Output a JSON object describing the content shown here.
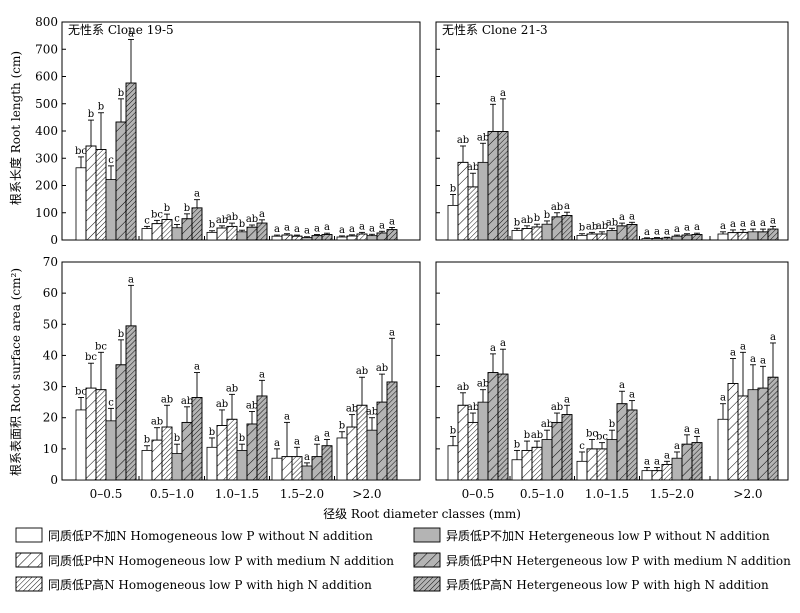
{
  "chart_data": {
    "type": "bar",
    "xlabel": "径级 Root diameter classes (mm)",
    "categories": [
      "0–0.5",
      "0.5–1.0",
      "1.0–1.5",
      "1.5–2.0",
      ">2.0"
    ],
    "legend": [
      {
        "label": "同质低P不加N  Homogeneous low P without N addition",
        "fill": "#ffffff",
        "hatch": "none"
      },
      {
        "label": "同质低P中N  Homogeneous low P with medium N addition",
        "fill": "#ffffff",
        "hatch": "sparse"
      },
      {
        "label": "同质低P高N  Homogeneous low P  with high N addition",
        "fill": "#ffffff",
        "hatch": "dense"
      },
      {
        "label": "异质低P不加N  Hetergeneous low P without N addition",
        "fill": "#b4b4b4",
        "hatch": "none"
      },
      {
        "label": "异质低P中N  Hetergeneous low P with medium N addition",
        "fill": "#b4b4b4",
        "hatch": "sparse"
      },
      {
        "label": "异质低P高N  Hetergeneous low P with high N addition",
        "fill": "#b4b4b4",
        "hatch": "dense"
      }
    ],
    "panels": [
      {
        "id": "length-19-5",
        "label": "无性系 Clone 19-5",
        "ylabel": "根系长度 Root length (cm)",
        "ylim": [
          0,
          800
        ],
        "yticks": [
          0,
          100,
          200,
          300,
          400,
          500,
          600,
          700,
          800
        ],
        "values": [
          [
            265,
            345,
            332,
            222,
            433,
            576
          ],
          [
            42,
            60,
            75,
            45,
            78,
            118
          ],
          [
            28,
            44,
            50,
            30,
            47,
            62
          ],
          [
            14,
            18,
            14,
            9,
            16,
            20
          ],
          [
            11,
            15,
            22,
            16,
            26,
            38
          ]
        ],
        "errors": [
          [
            40,
            95,
            135,
            50,
            85,
            160
          ],
          [
            8,
            12,
            20,
            12,
            18,
            30
          ],
          [
            6,
            8,
            12,
            6,
            8,
            12
          ],
          [
            4,
            5,
            4,
            3,
            4,
            5
          ],
          [
            4,
            4,
            6,
            5,
            6,
            8
          ]
        ],
        "sig": [
          [
            "bc",
            "b",
            "b",
            "c",
            "b",
            "a"
          ],
          [
            "c",
            "bc",
            "b",
            "c",
            "b",
            "a"
          ],
          [
            "b",
            "ab",
            "ab",
            "b",
            "ab",
            "a"
          ],
          [
            "a",
            "a",
            "a",
            "a",
            "a",
            "a"
          ],
          [
            "a",
            "a",
            "a",
            "a",
            "a",
            "a"
          ]
        ]
      },
      {
        "id": "length-21-3",
        "label": "无性系 Clone 21-3",
        "ylim": [
          0,
          800
        ],
        "values": [
          [
            127,
            285,
            195,
            285,
            398,
            398
          ],
          [
            35,
            42,
            48,
            58,
            85,
            90
          ],
          [
            17,
            22,
            22,
            35,
            52,
            57
          ],
          [
            5,
            6,
            7,
            14,
            18,
            20
          ],
          [
            22,
            27,
            28,
            30,
            30,
            40
          ]
        ],
        "errors": [
          [
            40,
            60,
            50,
            70,
            100,
            120
          ],
          [
            8,
            10,
            10,
            12,
            15,
            12
          ],
          [
            6,
            6,
            8,
            8,
            10,
            8
          ],
          [
            3,
            3,
            3,
            4,
            5,
            5
          ],
          [
            8,
            10,
            10,
            10,
            10,
            10
          ]
        ],
        "sig": [
          [
            "b",
            "ab",
            "ab",
            "ab",
            "a",
            "a"
          ],
          [
            "b",
            "ab",
            "b",
            "b",
            "ab",
            "a"
          ],
          [
            "b",
            "ab",
            "ab",
            "ab",
            "a",
            "a"
          ],
          [
            "a",
            "a",
            "a",
            "a",
            "a",
            "a"
          ],
          [
            "a",
            "a",
            "a",
            "a",
            "a",
            "a"
          ]
        ]
      },
      {
        "id": "area-19-5",
        "ylabel": "根系表面积 Root surface area (cm²)",
        "ylim": [
          0,
          70
        ],
        "yticks": [
          0,
          10,
          20,
          30,
          40,
          50,
          60,
          70
        ],
        "values": [
          [
            22.5,
            29.5,
            29,
            19,
            37,
            49.5
          ],
          [
            9.5,
            12.8,
            17,
            8.5,
            18.5,
            26.5
          ],
          [
            10.5,
            17.5,
            19.5,
            9.5,
            18,
            27
          ],
          [
            7,
            7.5,
            7.5,
            4.5,
            7.5,
            11
          ],
          [
            13.5,
            17,
            24,
            16,
            25,
            31.5
          ]
        ],
        "errors": [
          [
            4,
            8,
            12,
            4,
            8,
            13
          ],
          [
            1.5,
            4,
            7,
            3,
            5,
            8
          ],
          [
            3,
            5,
            8,
            2,
            4,
            5
          ],
          [
            3,
            11,
            3,
            1,
            4,
            2
          ],
          [
            2,
            4,
            9,
            4,
            9,
            14
          ]
        ],
        "sig": [
          [
            "bc",
            "bc",
            "bc",
            "c",
            "b",
            "a"
          ],
          [
            "b",
            "ab",
            "ab",
            "b",
            "ab",
            "a"
          ],
          [
            "b",
            "ab",
            "ab",
            "b",
            "ab",
            "a"
          ],
          [
            "a",
            "a",
            "a",
            "a",
            "a",
            "a"
          ],
          [
            "b",
            "ab",
            "ab",
            "ab",
            "ab",
            "a"
          ]
        ]
      },
      {
        "id": "area-21-3",
        "ylim": [
          0,
          70
        ],
        "values": [
          [
            11,
            24,
            18.5,
            25,
            34.5,
            34
          ],
          [
            6.5,
            9.5,
            10.5,
            13,
            18.5,
            21
          ],
          [
            6,
            10,
            10,
            13,
            24.5,
            22.5
          ],
          [
            3,
            3,
            5,
            7,
            11.5,
            12
          ],
          [
            19.5,
            31,
            27,
            29,
            29.5,
            33
          ]
        ],
        "errors": [
          [
            3,
            4,
            3,
            4,
            6,
            8
          ],
          [
            3,
            3,
            2,
            3,
            3,
            3
          ],
          [
            3,
            3,
            2,
            3,
            4,
            3
          ],
          [
            1,
            1,
            1,
            2,
            3,
            2
          ],
          [
            5,
            8,
            14,
            8,
            7,
            11
          ]
        ],
        "sig": [
          [
            "b",
            "ab",
            "ab",
            "ab",
            "a",
            "a"
          ],
          [
            "b",
            "b",
            "ab",
            "ab",
            "ab",
            "a"
          ],
          [
            "c",
            "bc",
            "bc",
            "b",
            "a",
            "a"
          ],
          [
            "a",
            "a",
            "a",
            "a",
            "a",
            "a"
          ],
          [
            "a",
            "a",
            "a",
            "a",
            "a",
            "a"
          ]
        ]
      }
    ]
  }
}
